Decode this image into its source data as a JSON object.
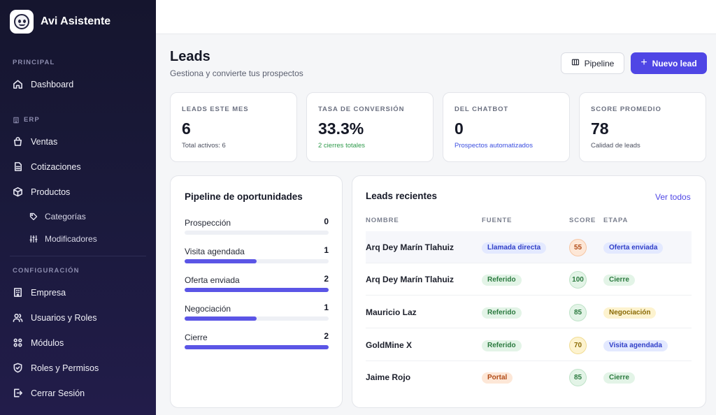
{
  "app": {
    "name": "Avi Asistente"
  },
  "sidebar": {
    "sections": {
      "principal": "PRINCIPAL",
      "erp": "ERP",
      "configuracion": "CONFIGURACIÓN"
    },
    "items": {
      "dashboard": "Dashboard",
      "ventas": "Ventas",
      "cotizaciones": "Cotizaciones",
      "productos": "Productos",
      "categorias": "Categorías",
      "modificadores": "Modificadores",
      "empresa": "Empresa",
      "usuarios": "Usuarios y Roles",
      "modulos": "Módulos",
      "roles_permisos": "Roles y Permisos",
      "cerrar_sesion": "Cerrar Sesión"
    }
  },
  "header": {
    "title": "Leads",
    "subtitle": "Gestiona y convierte tus prospectos",
    "pipeline_button": "Pipeline",
    "new_lead_button": "Nuevo lead"
  },
  "stats": [
    {
      "label": "LEADS ESTE MES",
      "value": "6",
      "sub": "Total activos: 6"
    },
    {
      "label": "TASA DE CONVERSIÓN",
      "value": "33.3%",
      "sub": "2 cierres totales"
    },
    {
      "label": "DEL CHATBOT",
      "value": "0",
      "sub": "Prospectos automatizados"
    },
    {
      "label": "SCORE PROMEDIO",
      "value": "78",
      "sub": "Calidad de leads"
    }
  ],
  "pipeline": {
    "title": "Pipeline de oportunidades",
    "max": 2,
    "stages": [
      {
        "name": "Prospección",
        "count": 0
      },
      {
        "name": "Visita agendada",
        "count": 1
      },
      {
        "name": "Oferta enviada",
        "count": 2
      },
      {
        "name": "Negociación",
        "count": 1
      },
      {
        "name": "Cierre",
        "count": 2
      }
    ]
  },
  "recent": {
    "title": "Leads recientes",
    "see_all": "Ver todos",
    "columns": {
      "name": "NOMBRE",
      "source": "FUENTE",
      "score": "SCORE",
      "stage": "ETAPA"
    },
    "rows": [
      {
        "name": "Arq Dey Marín Tlahuiz",
        "source": "Llamada directa",
        "score": "55",
        "stage": "Oferta enviada"
      },
      {
        "name": "Arq Dey Marín Tlahuiz",
        "source": "Referido",
        "score": "100",
        "stage": "Cierre"
      },
      {
        "name": "Mauricio Laz",
        "source": "Referido",
        "score": "85",
        "stage": "Negociación"
      },
      {
        "name": "GoldMine X",
        "source": "Referido",
        "score": "70",
        "stage": "Visita agendada"
      },
      {
        "name": "Jaime Rojo",
        "source": "Portal",
        "score": "85",
        "stage": "Cierre"
      }
    ]
  },
  "colors": {
    "accent": "#4f46e5",
    "badge_blue_bg": "#e3e9ff",
    "badge_blue_fg": "#3140c8",
    "badge_green_bg": "#e3f4e7",
    "badge_green_fg": "#2b7a3f",
    "badge_orange_bg": "#fde7d7",
    "badge_orange_fg": "#b14a16",
    "badge_yellow_bg": "#fdf3cf",
    "badge_yellow_fg": "#8a6a05"
  }
}
